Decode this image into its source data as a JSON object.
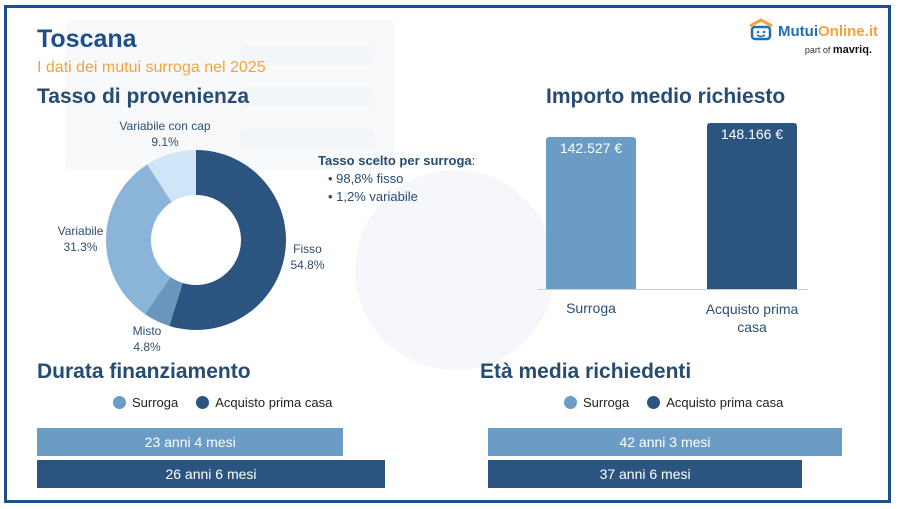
{
  "header": {
    "title": "Toscana",
    "subtitle": "I dati dei mutui surroga nel 2025"
  },
  "logo": {
    "brand_a": "Mutui",
    "brand_b": "Online.it",
    "tagline": "part of",
    "tagline_brand": "mavriq."
  },
  "colors": {
    "dark": "#2b5580",
    "mid": "#6a9cc6",
    "light": "#8ab4d8",
    "lightest": "#cfe5f8",
    "accent": "#f5a23c"
  },
  "chart_data": [
    {
      "type": "pie",
      "title": "Tasso di provenienza",
      "slices": [
        {
          "label": "Fisso",
          "value": 54.8,
          "display": "54.8%"
        },
        {
          "label": "Misto",
          "value": 4.8,
          "display": "4.8%"
        },
        {
          "label": "Variabile",
          "value": 31.3,
          "display": "31.3%"
        },
        {
          "label": "Variabile con cap",
          "value": 9.1,
          "display": "9.1%"
        }
      ]
    },
    {
      "type": "bar",
      "title": "Importo medio richiesto",
      "categories": [
        "Surroga",
        "Acquisto prima casa"
      ],
      "values": [
        142527,
        148166
      ],
      "labels": [
        "142.527 €",
        "148.166 €"
      ],
      "ylim": [
        0,
        150000
      ]
    },
    {
      "type": "bar",
      "title": "Durata finanziamento",
      "orientation": "horizontal",
      "legend": [
        "Surroga",
        "Acquisto prima casa"
      ],
      "values_months": [
        280,
        318
      ],
      "labels": [
        "23 anni 4 mesi",
        "26 anni 6 mesi"
      ]
    },
    {
      "type": "bar",
      "title": "Età media richiedenti",
      "orientation": "horizontal",
      "legend": [
        "Surroga",
        "Acquisto prima casa"
      ],
      "values_years": [
        42.25,
        37.5
      ],
      "labels": [
        "42 anni 3 mesi",
        "37 anni 6 mesi"
      ]
    }
  ],
  "note": {
    "title": "Tasso scelto per surroga",
    "colon": ":",
    "items": [
      "98,8% fisso",
      "1,2% variabile"
    ]
  }
}
